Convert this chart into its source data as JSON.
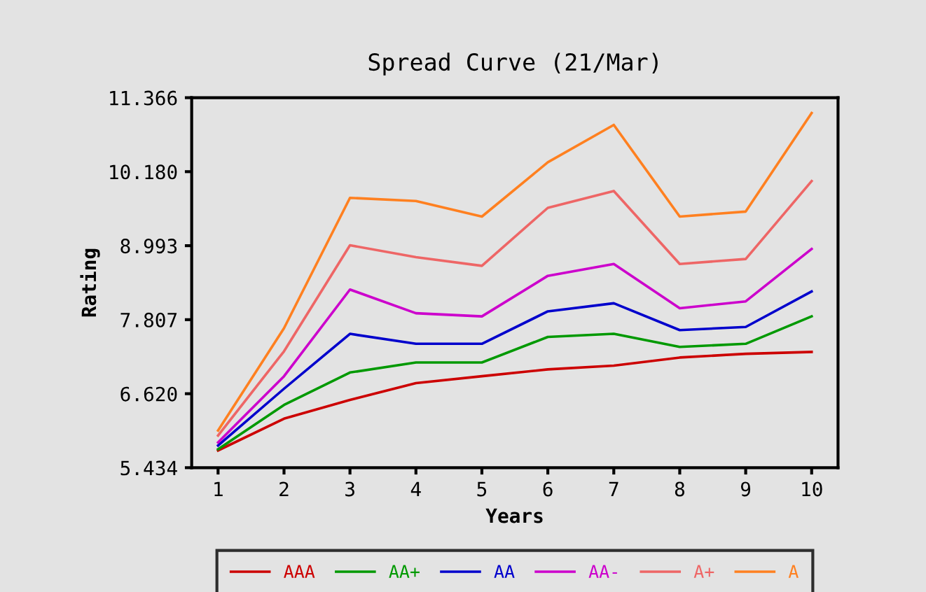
{
  "chart_data": {
    "type": "line",
    "title": "Spread Curve (21/Mar)",
    "xlabel": "Years",
    "ylabel": "Rating",
    "x": [
      1,
      2,
      3,
      4,
      5,
      6,
      7,
      8,
      9,
      10
    ],
    "xlim": [
      0.6,
      10.4
    ],
    "xticks": [
      1,
      2,
      3,
      4,
      5,
      6,
      7,
      8,
      9,
      10
    ],
    "ylim": [
      5.434,
      11.366
    ],
    "yticks": [
      {
        "value": 5.434,
        "label": "5.434"
      },
      {
        "value": 6.62,
        "label": "6.620"
      },
      {
        "value": 7.807,
        "label": "7.807"
      },
      {
        "value": 8.993,
        "label": "8.993"
      },
      {
        "value": 10.18,
        "label": "10.180"
      },
      {
        "value": 11.366,
        "label": "11.366"
      }
    ],
    "grid": false,
    "legend": "bottom",
    "marker": "none",
    "line_style": "solid",
    "series": [
      {
        "name": "AAA",
        "color": "#cc0000",
        "values": [
          5.71,
          6.22,
          6.52,
          6.79,
          6.9,
          7.01,
          7.07,
          7.2,
          7.26,
          7.29
        ]
      },
      {
        "name": "AA+",
        "color": "#009900",
        "values": [
          5.73,
          6.44,
          6.96,
          7.12,
          7.12,
          7.53,
          7.58,
          7.37,
          7.42,
          7.86
        ]
      },
      {
        "name": "AA",
        "color": "#0000cc",
        "values": [
          5.79,
          6.7,
          7.58,
          7.42,
          7.42,
          7.94,
          8.07,
          7.64,
          7.69,
          8.26
        ]
      },
      {
        "name": "AA-",
        "color": "#cc00cc",
        "values": [
          5.84,
          6.9,
          8.29,
          7.91,
          7.86,
          8.51,
          8.7,
          7.99,
          8.1,
          8.94
        ]
      },
      {
        "name": "A+",
        "color": "#ee6666",
        "values": [
          5.95,
          7.3,
          9.0,
          8.81,
          8.67,
          9.6,
          9.87,
          8.7,
          8.78,
          10.03
        ]
      },
      {
        "name": "A",
        "color": "#ff8020",
        "values": [
          6.03,
          7.67,
          9.76,
          9.71,
          9.46,
          10.33,
          10.93,
          9.46,
          9.54,
          11.12
        ]
      }
    ]
  }
}
